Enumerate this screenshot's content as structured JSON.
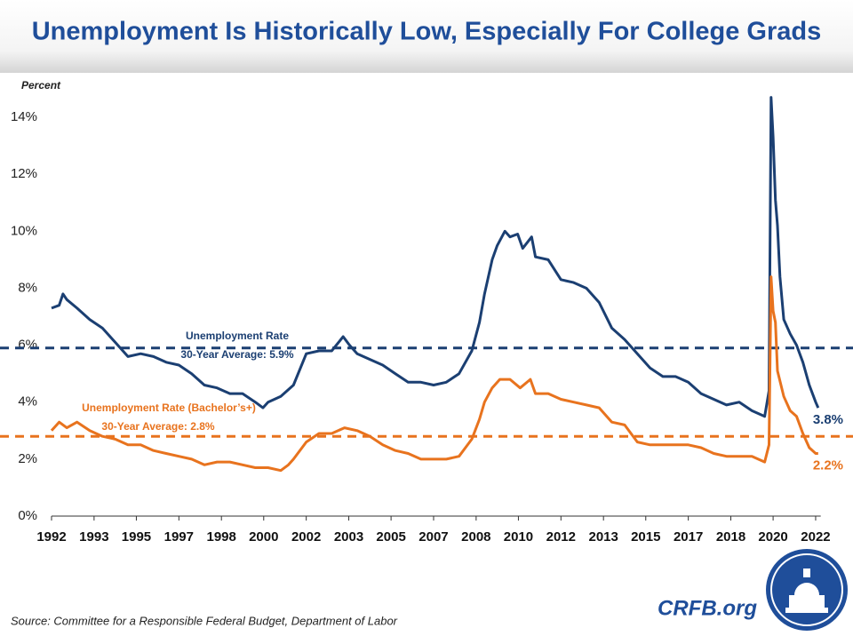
{
  "chart_data": {
    "type": "line",
    "title": "Unemployment Is Historically Low, Especially For College Grads",
    "y_axis_label": "Percent",
    "source": "Source: Committee for a Responsible Federal Budget, Department of Labor",
    "brand": "CRFB.org",
    "xlim": [
      1992,
      2022.2
    ],
    "xticks": [
      {
        "value": 1992.0,
        "label": "1992"
      },
      {
        "value": 1993.67,
        "label": "1993"
      },
      {
        "value": 1995.33,
        "label": "1995"
      },
      {
        "value": 1997.0,
        "label": "1997"
      },
      {
        "value": 1998.67,
        "label": "1998"
      },
      {
        "value": 2000.33,
        "label": "2000"
      },
      {
        "value": 2002.0,
        "label": "2002"
      },
      {
        "value": 2003.67,
        "label": "2003"
      },
      {
        "value": 2005.33,
        "label": "2005"
      },
      {
        "value": 2007.0,
        "label": "2007"
      },
      {
        "value": 2008.67,
        "label": "2008"
      },
      {
        "value": 2010.33,
        "label": "2010"
      },
      {
        "value": 2012.0,
        "label": "2012"
      },
      {
        "value": 2013.67,
        "label": "2013"
      },
      {
        "value": 2015.33,
        "label": "2015"
      },
      {
        "value": 2017.0,
        "label": "2017"
      },
      {
        "value": 2018.67,
        "label": "2018"
      },
      {
        "value": 2020.33,
        "label": "2020"
      },
      {
        "value": 2022.0,
        "label": "2022"
      }
    ],
    "ylim": [
      0,
      15
    ],
    "yticks": [
      {
        "value": 0,
        "label": "0%"
      },
      {
        "value": 2,
        "label": "2%"
      },
      {
        "value": 4,
        "label": "4%"
      },
      {
        "value": 6,
        "label": "6%"
      },
      {
        "value": 8,
        "label": "8%"
      },
      {
        "value": 10,
        "label": "10%"
      },
      {
        "value": 12,
        "label": "12%"
      },
      {
        "value": 14,
        "label": "14%"
      }
    ],
    "grid": false,
    "series": [
      {
        "name": "Unemployment Rate",
        "color": "#1b3f72",
        "end_label": "3.8%",
        "x": [
          1992.0,
          1992.3,
          1992.45,
          1992.6,
          1993.0,
          1993.5,
          1994.0,
          1994.5,
          1995.0,
          1995.5,
          1996.0,
          1996.5,
          1997.0,
          1997.5,
          1998.0,
          1998.5,
          1999.0,
          1999.5,
          2000.0,
          2000.3,
          2000.5,
          2001.0,
          2001.5,
          2002.0,
          2002.5,
          2003.0,
          2003.45,
          2003.7,
          2004.0,
          2004.5,
          2005.0,
          2005.5,
          2006.0,
          2006.5,
          2007.0,
          2007.5,
          2008.0,
          2008.5,
          2008.8,
          2009.0,
          2009.3,
          2009.5,
          2009.8,
          2010.0,
          2010.3,
          2010.5,
          2010.85,
          2011.0,
          2011.5,
          2012.0,
          2012.5,
          2013.0,
          2013.5,
          2014.0,
          2014.5,
          2015.0,
          2015.5,
          2016.0,
          2016.5,
          2017.0,
          2017.5,
          2018.0,
          2018.5,
          2019.0,
          2019.5,
          2020.0,
          2020.17,
          2020.25,
          2020.33,
          2020.42,
          2020.5,
          2020.6,
          2020.75,
          2021.0,
          2021.25,
          2021.5,
          2021.75,
          2022.0,
          2022.1
        ],
        "values": [
          7.3,
          7.4,
          7.8,
          7.6,
          7.3,
          6.9,
          6.6,
          6.1,
          5.6,
          5.7,
          5.6,
          5.4,
          5.3,
          5.0,
          4.6,
          4.5,
          4.3,
          4.3,
          4.0,
          3.8,
          4.0,
          4.2,
          4.6,
          5.7,
          5.8,
          5.8,
          6.3,
          6.0,
          5.7,
          5.5,
          5.3,
          5.0,
          4.7,
          4.7,
          4.6,
          4.7,
          5.0,
          5.8,
          6.8,
          7.8,
          9.0,
          9.5,
          10.0,
          9.8,
          9.9,
          9.4,
          9.8,
          9.1,
          9.0,
          8.3,
          8.2,
          8.0,
          7.5,
          6.6,
          6.2,
          5.7,
          5.2,
          4.9,
          4.9,
          4.7,
          4.3,
          4.1,
          3.9,
          4.0,
          3.7,
          3.5,
          4.4,
          14.7,
          13.3,
          11.1,
          10.2,
          8.4,
          6.9,
          6.4,
          6.0,
          5.4,
          4.6,
          4.0,
          3.8
        ]
      },
      {
        "name": "Unemployment Rate (Bachelor’s+)",
        "color": "#e8731e",
        "end_label": "2.2%",
        "x": [
          1992.0,
          1992.3,
          1992.6,
          1993.0,
          1993.5,
          1994.0,
          1994.5,
          1995.0,
          1995.5,
          1996.0,
          1996.5,
          1997.0,
          1997.5,
          1998.0,
          1998.5,
          1999.0,
          1999.5,
          2000.0,
          2000.5,
          2001.0,
          2001.3,
          2001.5,
          2002.0,
          2002.5,
          2003.0,
          2003.5,
          2004.0,
          2004.5,
          2005.0,
          2005.5,
          2006.0,
          2006.5,
          2007.0,
          2007.5,
          2008.0,
          2008.5,
          2008.8,
          2009.0,
          2009.3,
          2009.6,
          2010.0,
          2010.4,
          2010.8,
          2011.0,
          2011.5,
          2012.0,
          2012.5,
          2013.0,
          2013.5,
          2014.0,
          2014.5,
          2015.0,
          2015.5,
          2016.0,
          2016.5,
          2017.0,
          2017.5,
          2018.0,
          2018.5,
          2019.0,
          2019.5,
          2020.0,
          2020.17,
          2020.25,
          2020.33,
          2020.42,
          2020.5,
          2020.75,
          2021.0,
          2021.25,
          2021.5,
          2021.75,
          2022.0,
          2022.1
        ],
        "values": [
          3.0,
          3.3,
          3.1,
          3.3,
          3.0,
          2.8,
          2.7,
          2.5,
          2.5,
          2.3,
          2.2,
          2.1,
          2.0,
          1.8,
          1.9,
          1.9,
          1.8,
          1.7,
          1.7,
          1.6,
          1.8,
          2.0,
          2.6,
          2.9,
          2.9,
          3.1,
          3.0,
          2.8,
          2.5,
          2.3,
          2.2,
          2.0,
          2.0,
          2.0,
          2.1,
          2.7,
          3.4,
          4.0,
          4.5,
          4.8,
          4.8,
          4.5,
          4.8,
          4.3,
          4.3,
          4.1,
          4.0,
          3.9,
          3.8,
          3.3,
          3.2,
          2.6,
          2.5,
          2.5,
          2.5,
          2.5,
          2.4,
          2.2,
          2.1,
          2.1,
          2.1,
          1.9,
          2.5,
          8.4,
          7.2,
          6.8,
          5.1,
          4.2,
          3.7,
          3.5,
          2.9,
          2.4,
          2.2,
          2.2
        ]
      }
    ],
    "reference_lines": [
      {
        "value": 5.9,
        "label": "30-Year Average: 5.9%",
        "color": "#1b3f72"
      },
      {
        "value": 2.8,
        "label": "30-Year Average: 2.8%",
        "color": "#e8731e"
      }
    ]
  }
}
